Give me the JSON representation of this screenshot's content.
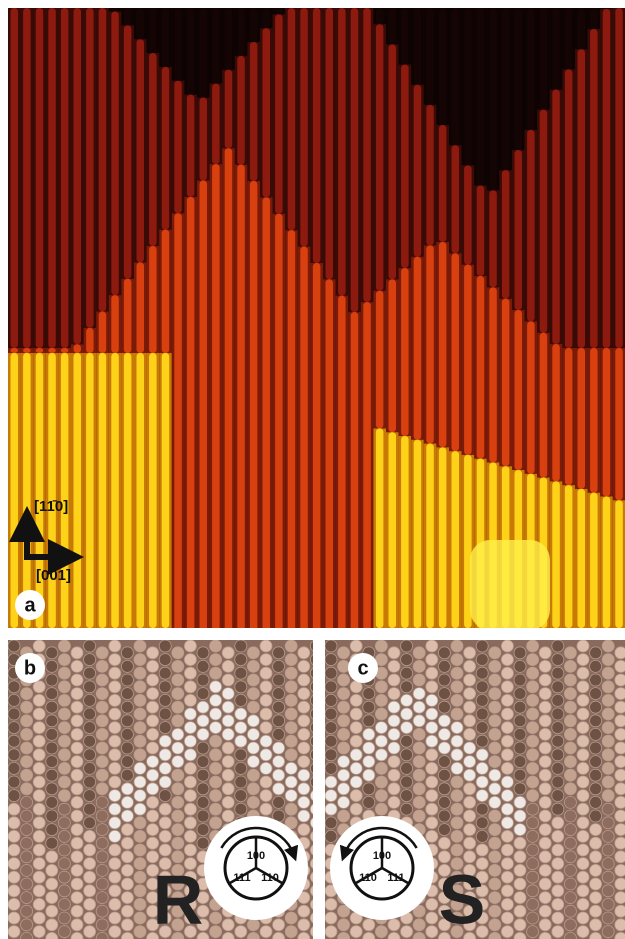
{
  "panels": [
    {
      "label": "a",
      "axes": {
        "vertical": "[11̄0]",
        "horizontal": "[001]"
      }
    },
    {
      "label": "b",
      "faces": [
        "100",
        "111",
        "110"
      ],
      "handedness": "R"
    },
    {
      "label": "c",
      "faces": [
        "100",
        "110",
        "111"
      ],
      "handedness": "S"
    }
  ]
}
